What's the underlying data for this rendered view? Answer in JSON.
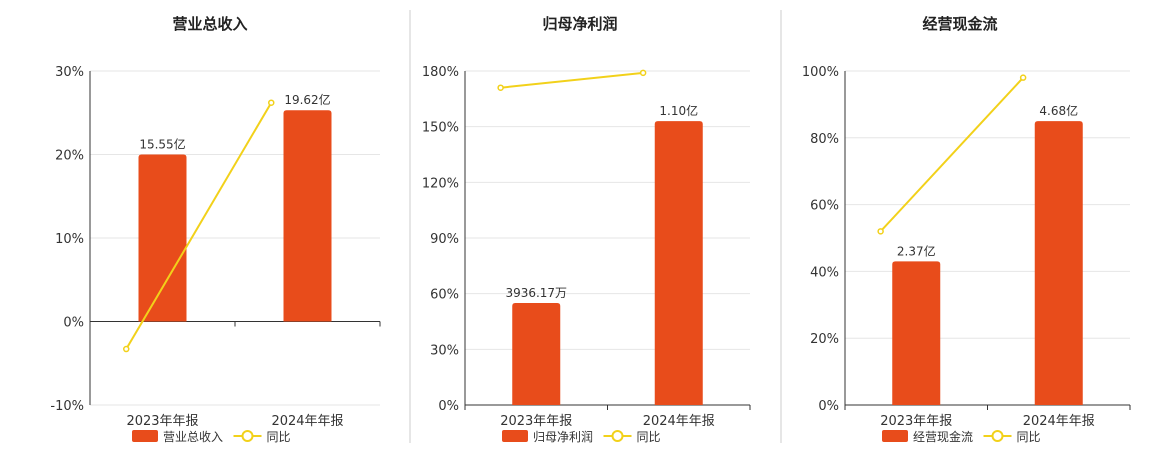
{
  "colors": {
    "bar": "#E84C1B",
    "line": "#F2D11A",
    "grid": "#e6e6e6",
    "axis": "#333333",
    "text": "#333333"
  },
  "chart_data": [
    {
      "type": "bar",
      "title": "营业总收入",
      "categories": [
        "2023年年报",
        "2024年年报"
      ],
      "ylim": [
        -10,
        30
      ],
      "yticks": [
        -10,
        0,
        10,
        20,
        30
      ],
      "ytick_labels": [
        "-10%",
        "0%",
        "10%",
        "20%",
        "30%"
      ],
      "series": [
        {
          "name": "营业总收入",
          "kind": "bar",
          "values": [
            20.0,
            25.3
          ],
          "labels": [
            "15.55亿",
            "19.62亿"
          ]
        },
        {
          "name": "同比",
          "kind": "line",
          "values": [
            -3.3,
            26.2
          ]
        }
      ],
      "legend": "bottom",
      "grid": true
    },
    {
      "type": "bar",
      "title": "归母净利润",
      "categories": [
        "2023年年报",
        "2024年年报"
      ],
      "ylim": [
        0,
        180
      ],
      "yticks": [
        0,
        30,
        60,
        90,
        120,
        150,
        180
      ],
      "ytick_labels": [
        "0%",
        "30%",
        "60%",
        "90%",
        "120%",
        "150%",
        "180%"
      ],
      "series": [
        {
          "name": "归母净利润",
          "kind": "bar",
          "values": [
            55,
            153
          ],
          "labels": [
            "3936.17万",
            "1.10亿"
          ]
        },
        {
          "name": "同比",
          "kind": "line",
          "values": [
            171,
            179
          ]
        }
      ],
      "legend": "bottom",
      "grid": true
    },
    {
      "type": "bar",
      "title": "经营现金流",
      "categories": [
        "2023年年报",
        "2024年年报"
      ],
      "ylim": [
        0,
        100
      ],
      "yticks": [
        0,
        20,
        40,
        60,
        80,
        100
      ],
      "ytick_labels": [
        "0%",
        "20%",
        "40%",
        "60%",
        "80%",
        "100%"
      ],
      "series": [
        {
          "name": "经营现金流",
          "kind": "bar",
          "values": [
            43,
            85
          ],
          "labels": [
            "2.37亿",
            "4.68亿"
          ]
        },
        {
          "name": "同比",
          "kind": "line",
          "values": [
            52,
            98
          ]
        }
      ],
      "legend": "bottom",
      "grid": true
    }
  ]
}
